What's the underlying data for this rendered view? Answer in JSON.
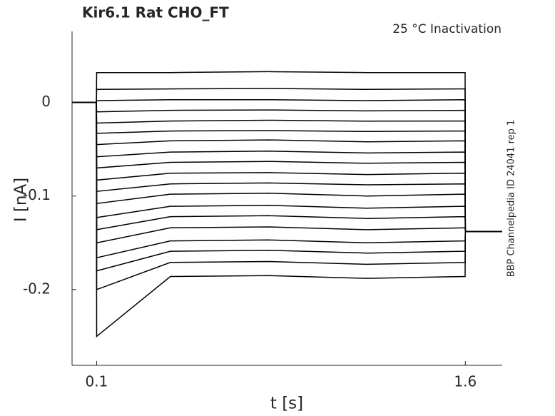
{
  "chart_data": {
    "type": "line",
    "title": "Kir6.1  Rat  CHO_FT",
    "annotation": "25 °C  Inactivation",
    "side_note": "BBP Channelpedia ID 24041 rep 1",
    "x_label": "t [s]",
    "y_label": "I [nA]",
    "x": [
      0,
      0.099,
      0.1,
      0.4,
      0.8,
      1.2,
      1.599,
      1.6,
      1.75
    ],
    "xlim": [
      0,
      1.75
    ],
    "xticks": [
      0.1,
      1.6
    ],
    "ylim": [
      -0.281,
      0.076
    ],
    "yticks": [
      0,
      -0.1,
      -0.2
    ],
    "series": [
      {
        "color": "#000000",
        "values": [
          0,
          0,
          0.032,
          0.032,
          0.033,
          0.032,
          0.032,
          -0.138,
          -0.138
        ]
      },
      {
        "color": "#000000",
        "values": [
          0,
          0,
          0.014,
          0.0145,
          0.015,
          0.014,
          0.0145,
          -0.138,
          -0.138
        ]
      },
      {
        "color": "#000000",
        "values": [
          0,
          0,
          0.002,
          0.003,
          0.003,
          0.002,
          0.003,
          -0.138,
          -0.138
        ]
      },
      {
        "color": "#000000",
        "values": [
          0,
          0,
          -0.01,
          -0.0084,
          -0.008,
          -0.009,
          -0.0084,
          -0.138,
          -0.138
        ]
      },
      {
        "color": "#000000",
        "values": [
          0,
          0,
          -0.022,
          -0.0198,
          -0.019,
          -0.02,
          -0.0198,
          -0.138,
          -0.138
        ]
      },
      {
        "color": "#000000",
        "values": [
          0,
          0,
          -0.033,
          -0.0305,
          -0.03,
          -0.031,
          -0.0305,
          -0.138,
          -0.138
        ]
      },
      {
        "color": "#000000",
        "values": [
          0,
          0,
          -0.045,
          -0.041,
          -0.04,
          -0.042,
          -0.041,
          -0.138,
          -0.138
        ]
      },
      {
        "color": "#000000",
        "values": [
          0,
          0,
          -0.058,
          -0.053,
          -0.052,
          -0.054,
          -0.053,
          -0.138,
          -0.138
        ]
      },
      {
        "color": "#000000",
        "values": [
          0,
          0,
          -0.07,
          -0.064,
          -0.063,
          -0.065,
          -0.064,
          -0.138,
          -0.138
        ]
      },
      {
        "color": "#000000",
        "values": [
          0,
          0,
          -0.083,
          -0.0756,
          -0.075,
          -0.077,
          -0.0756,
          -0.138,
          -0.138
        ]
      },
      {
        "color": "#000000",
        "values": [
          0,
          0,
          -0.095,
          -0.087,
          -0.086,
          -0.088,
          -0.087,
          -0.138,
          -0.138
        ]
      },
      {
        "color": "#000000",
        "values": [
          0,
          0,
          -0.108,
          -0.098,
          -0.097,
          -0.1,
          -0.098,
          -0.138,
          -0.138
        ]
      },
      {
        "color": "#000000",
        "values": [
          0,
          0,
          -0.123,
          -0.111,
          -0.11,
          -0.113,
          -0.111,
          -0.138,
          -0.138
        ]
      },
      {
        "color": "#000000",
        "values": [
          0,
          0,
          -0.136,
          -0.122,
          -0.121,
          -0.124,
          -0.122,
          -0.138,
          -0.138
        ]
      },
      {
        "color": "#000000",
        "values": [
          0,
          0,
          -0.15,
          -0.134,
          -0.133,
          -0.136,
          -0.134,
          -0.138,
          -0.138
        ]
      },
      {
        "color": "#000000",
        "values": [
          0,
          0,
          -0.166,
          -0.148,
          -0.147,
          -0.15,
          -0.148,
          -0.138,
          -0.138
        ]
      },
      {
        "color": "#000000",
        "values": [
          0,
          0,
          -0.18,
          -0.159,
          -0.158,
          -0.161,
          -0.159,
          -0.138,
          -0.138
        ]
      },
      {
        "color": "#000000",
        "values": [
          0,
          0,
          -0.2,
          -0.171,
          -0.17,
          -0.173,
          -0.171,
          -0.138,
          -0.138
        ]
      },
      {
        "color": "#000000",
        "values": [
          0,
          0,
          -0.25,
          -0.186,
          -0.185,
          -0.188,
          -0.186,
          -0.138,
          -0.138
        ]
      }
    ]
  }
}
